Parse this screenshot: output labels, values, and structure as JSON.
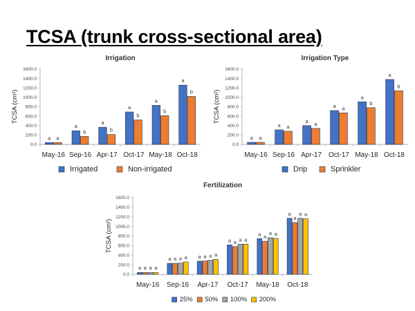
{
  "slide": {
    "title": "TCSA (trunk cross-sectional area)"
  },
  "chart_data": [
    {
      "type": "bar",
      "title": "Irrigation",
      "ylabel": "TCSA (cm²)",
      "ylim": [
        0,
        1600
      ],
      "yticks": [
        "0.0",
        "200.0",
        "400.0",
        "600.0",
        "800.0",
        "1000.0",
        "1200.0",
        "1400.0",
        "1600.0"
      ],
      "categories": [
        "May-16",
        "Sep-16",
        "Apr-17",
        "Oct-17",
        "May-18",
        "Oct-18"
      ],
      "series": [
        {
          "name": "Irrigated",
          "color": "#4472C4",
          "values": [
            40,
            290,
            365,
            690,
            830,
            1260
          ],
          "labels": [
            "a",
            "a",
            "a",
            "a",
            "a",
            "a"
          ]
        },
        {
          "name": "Non-irrigated",
          "color": "#ED7D31",
          "values": [
            40,
            170,
            210,
            520,
            610,
            1020
          ],
          "labels": [
            "a",
            "b",
            "b",
            "b",
            "b",
            "b"
          ]
        }
      ],
      "legend": "bottom"
    },
    {
      "type": "bar",
      "title": "Irrigation Type",
      "ylabel": "TCSA (cm²)",
      "ylim": [
        0,
        1600
      ],
      "yticks": [
        "0.0",
        "200.0",
        "400.0",
        "600.0",
        "800.0",
        "1000.0",
        "1200.0",
        "1400.0",
        "1600.0"
      ],
      "categories": [
        "May-16",
        "Sep-16",
        "Apr-17",
        "Oct-17",
        "May-18",
        "Oct-18"
      ],
      "series": [
        {
          "name": "Drip",
          "color": "#4472C4",
          "values": [
            45,
            310,
            400,
            720,
            905,
            1380
          ],
          "labels": [
            "a",
            "a",
            "a",
            "a",
            "a",
            "a"
          ]
        },
        {
          "name": "Sprinkler",
          "color": "#ED7D31",
          "values": [
            45,
            280,
            340,
            670,
            780,
            1140
          ],
          "labels": [
            "a",
            "a",
            "a",
            "a",
            "b",
            "b"
          ]
        }
      ],
      "legend": "bottom"
    },
    {
      "type": "bar",
      "title": "Fertilization",
      "ylabel": "TCSA (cm²)",
      "ylim": [
        0,
        1600
      ],
      "yticks": [
        "0.0",
        "200.0",
        "400.0",
        "600.0",
        "800.0",
        "1000.0",
        "1200.0",
        "1400.0",
        "1600.0"
      ],
      "categories": [
        "May-16",
        "Sep-16",
        "Apr-17",
        "Oct-17",
        "May-18",
        "Oct-18"
      ],
      "series": [
        {
          "name": "25%",
          "color": "#4472C4",
          "values": [
            40,
            230,
            275,
            615,
            745,
            1170
          ],
          "labels": [
            "a",
            "a",
            "a",
            "a",
            "a",
            "a"
          ]
        },
        {
          "name": "50%",
          "color": "#ED7D31",
          "values": [
            40,
            230,
            280,
            580,
            690,
            1080
          ],
          "labels": [
            "a",
            "a",
            "a",
            "a",
            "a",
            "a"
          ]
        },
        {
          "name": "100%",
          "color": "#A5A5A5",
          "values": [
            40,
            235,
            295,
            630,
            765,
            1170
          ],
          "labels": [
            "a",
            "a",
            "a",
            "a",
            "a",
            "a"
          ]
        },
        {
          "name": "200%",
          "color": "#FFC000",
          "values": [
            40,
            260,
            315,
            630,
            750,
            1160
          ],
          "labels": [
            "a",
            "a",
            "a",
            "a",
            "a",
            "a"
          ]
        }
      ],
      "legend": "bottom"
    }
  ]
}
